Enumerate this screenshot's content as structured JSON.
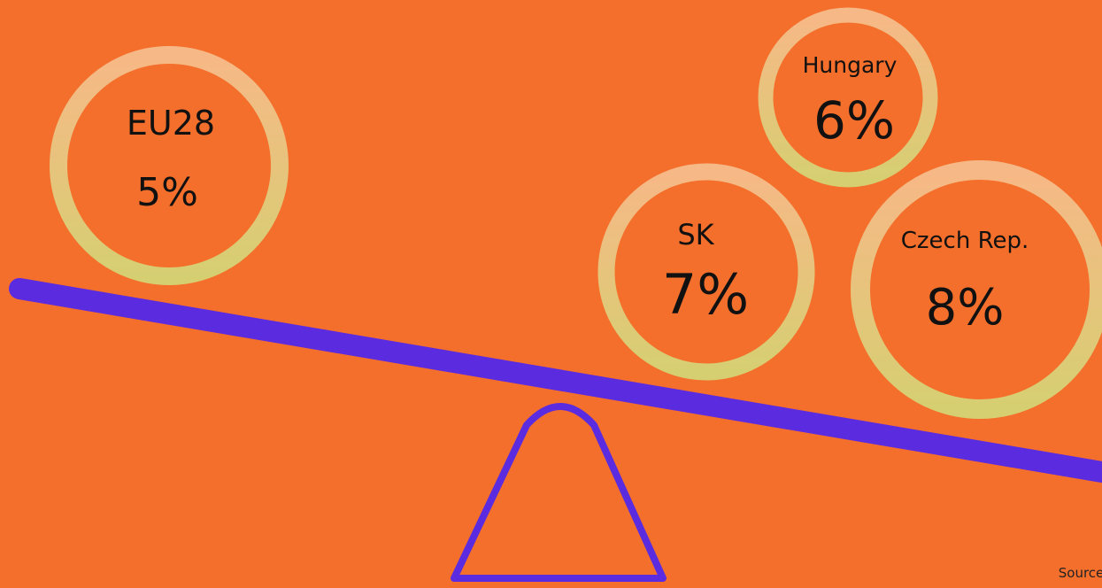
{
  "colors": {
    "background": "#F46F2B",
    "scale": "#5B2BE0",
    "ring_top": "#F7B887",
    "ring_bottom": "#D6CF72"
  },
  "circles": [
    {
      "label": "EU28",
      "value": "5%"
    },
    {
      "label": "Hungary",
      "value": "6%"
    },
    {
      "label": "SK",
      "value": "7%"
    },
    {
      "label": "Czech Rep.",
      "value": "8%"
    }
  ],
  "source": "Source: EI"
}
